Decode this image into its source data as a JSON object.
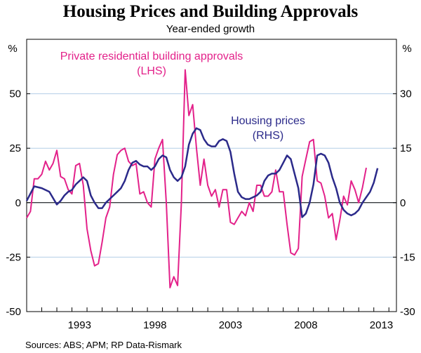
{
  "chart_data": {
    "type": "line",
    "title": "Housing Prices and Building Approvals",
    "subtitle": "Year-ended growth",
    "source": "Sources: ABS; APM; RP Data-Rismark",
    "left_axis": {
      "unit": "%",
      "ylim": [
        -50,
        75
      ],
      "ticks": [
        50,
        25,
        0,
        -25,
        -50
      ]
    },
    "right_axis": {
      "unit": "%",
      "ylim": [
        -30,
        45
      ],
      "ticks": [
        30,
        15,
        0,
        -15,
        -30
      ]
    },
    "x_axis": {
      "xlim": [
        1990.0,
        2014.5
      ],
      "ticks": [
        "1993",
        "1998",
        "2003",
        "2008",
        "2013"
      ],
      "tick_values": [
        1993,
        1998,
        2003,
        2008,
        2013
      ]
    },
    "colors": {
      "approvals": "#e3218a",
      "prices": "#2b2a8a",
      "grid": "#b3cde6"
    },
    "series": [
      {
        "name": "Private residential building approvals",
        "label_line1": "Private residential building approvals",
        "label_line2": "(LHS)",
        "axis": "left",
        "points": [
          [
            1990.0,
            -7
          ],
          [
            1990.25,
            -4
          ],
          [
            1990.5,
            11
          ],
          [
            1990.75,
            11
          ],
          [
            1991.0,
            13
          ],
          [
            1991.25,
            19
          ],
          [
            1991.5,
            15
          ],
          [
            1991.75,
            18
          ],
          [
            1992.0,
            24
          ],
          [
            1992.25,
            12
          ],
          [
            1992.5,
            11
          ],
          [
            1992.75,
            6
          ],
          [
            1993.0,
            4
          ],
          [
            1993.25,
            17
          ],
          [
            1993.5,
            18
          ],
          [
            1993.75,
            8
          ],
          [
            1994.0,
            -12
          ],
          [
            1994.25,
            -22
          ],
          [
            1994.5,
            -29
          ],
          [
            1994.75,
            -28
          ],
          [
            1995.0,
            -18
          ],
          [
            1995.25,
            -7
          ],
          [
            1995.5,
            -2
          ],
          [
            1995.75,
            13
          ],
          [
            1996.0,
            22
          ],
          [
            1996.25,
            24
          ],
          [
            1996.5,
            25
          ],
          [
            1996.75,
            19
          ],
          [
            1997.0,
            17
          ],
          [
            1997.25,
            18
          ],
          [
            1997.5,
            4
          ],
          [
            1997.75,
            5
          ],
          [
            1998.0,
            0
          ],
          [
            1998.25,
            -2
          ],
          [
            1998.5,
            20
          ],
          [
            1998.75,
            25
          ],
          [
            1999.0,
            29
          ],
          [
            1999.25,
            0
          ],
          [
            1999.5,
            -39
          ],
          [
            1999.75,
            -34
          ],
          [
            2000.0,
            -38
          ],
          [
            2000.25,
            0
          ],
          [
            2000.5,
            61
          ],
          [
            2000.75,
            40
          ],
          [
            2001.0,
            45
          ],
          [
            2001.25,
            25
          ],
          [
            2001.5,
            8
          ],
          [
            2001.75,
            20
          ],
          [
            2002.0,
            8
          ],
          [
            2002.25,
            3
          ],
          [
            2002.5,
            6
          ],
          [
            2002.75,
            -2
          ],
          [
            2003.0,
            6
          ],
          [
            2003.25,
            6
          ],
          [
            2003.5,
            -9
          ],
          [
            2003.75,
            -10
          ],
          [
            2004.0,
            -7
          ],
          [
            2004.25,
            -4
          ],
          [
            2004.5,
            -6
          ],
          [
            2004.75,
            0
          ],
          [
            2005.0,
            -4
          ],
          [
            2005.25,
            8
          ],
          [
            2005.5,
            8
          ],
          [
            2005.75,
            3
          ],
          [
            2006.0,
            3
          ],
          [
            2006.25,
            5
          ],
          [
            2006.5,
            15
          ],
          [
            2006.75,
            5
          ],
          [
            2007.0,
            5
          ],
          [
            2007.25,
            -10
          ],
          [
            2007.5,
            -23
          ],
          [
            2007.75,
            -24
          ],
          [
            2008.0,
            -21
          ],
          [
            2008.25,
            12
          ],
          [
            2008.5,
            20
          ],
          [
            2008.75,
            28
          ],
          [
            2009.0,
            29
          ],
          [
            2009.25,
            10
          ],
          [
            2009.5,
            9
          ],
          [
            2009.75,
            3
          ],
          [
            2010.0,
            -7
          ],
          [
            2010.25,
            -5
          ],
          [
            2010.5,
            -17
          ],
          [
            2010.75,
            -8
          ],
          [
            2011.0,
            3
          ],
          [
            2011.25,
            -1
          ],
          [
            2011.5,
            10
          ],
          [
            2011.75,
            6
          ],
          [
            2012.0,
            0
          ],
          [
            2012.25,
            7
          ],
          [
            2012.5,
            16
          ]
        ]
      },
      {
        "name": "Housing prices",
        "label_line1": "Housing prices",
        "label_line2": "(RHS)",
        "axis": "right",
        "points": [
          [
            1990.0,
            0.5
          ],
          [
            1990.5,
            4.5
          ],
          [
            1991.0,
            4
          ],
          [
            1991.5,
            3
          ],
          [
            1992.0,
            -0.5
          ],
          [
            1992.25,
            0.5
          ],
          [
            1992.5,
            2
          ],
          [
            1992.75,
            3
          ],
          [
            1993.0,
            3.5
          ],
          [
            1993.25,
            5
          ],
          [
            1993.5,
            6
          ],
          [
            1993.75,
            7
          ],
          [
            1994.0,
            6
          ],
          [
            1994.25,
            2
          ],
          [
            1994.5,
            0
          ],
          [
            1994.75,
            -1.5
          ],
          [
            1995.0,
            -1.5
          ],
          [
            1995.25,
            0
          ],
          [
            1995.5,
            1
          ],
          [
            1995.75,
            2
          ],
          [
            1996.0,
            3
          ],
          [
            1996.25,
            4
          ],
          [
            1996.5,
            6
          ],
          [
            1996.75,
            9
          ],
          [
            1997.0,
            11
          ],
          [
            1997.25,
            11.5
          ],
          [
            1997.5,
            10.5
          ],
          [
            1997.75,
            10
          ],
          [
            1998.0,
            10
          ],
          [
            1998.25,
            9
          ],
          [
            1998.5,
            10
          ],
          [
            1998.75,
            12
          ],
          [
            1999.0,
            13
          ],
          [
            1999.25,
            12.5
          ],
          [
            1999.5,
            9
          ],
          [
            1999.75,
            7
          ],
          [
            2000.0,
            6
          ],
          [
            2000.25,
            7
          ],
          [
            2000.5,
            10
          ],
          [
            2000.75,
            16
          ],
          [
            2001.0,
            19
          ],
          [
            2001.25,
            20.5
          ],
          [
            2001.5,
            20
          ],
          [
            2001.75,
            17.5
          ],
          [
            2002.0,
            16
          ],
          [
            2002.25,
            15.5
          ],
          [
            2002.5,
            15.5
          ],
          [
            2002.75,
            17
          ],
          [
            2003.0,
            17.5
          ],
          [
            2003.25,
            17
          ],
          [
            2003.5,
            14
          ],
          [
            2003.75,
            8
          ],
          [
            2004.0,
            3
          ],
          [
            2004.25,
            1.5
          ],
          [
            2004.5,
            1
          ],
          [
            2004.75,
            1
          ],
          [
            2005.0,
            1.5
          ],
          [
            2005.25,
            2
          ],
          [
            2005.5,
            3
          ],
          [
            2005.75,
            6
          ],
          [
            2006.0,
            7.5
          ],
          [
            2006.25,
            8
          ],
          [
            2006.5,
            8
          ],
          [
            2006.75,
            9
          ],
          [
            2007.0,
            11
          ],
          [
            2007.25,
            13
          ],
          [
            2007.5,
            12
          ],
          [
            2007.75,
            8
          ],
          [
            2008.0,
            4
          ],
          [
            2008.25,
            -4
          ],
          [
            2008.5,
            -3
          ],
          [
            2008.75,
            0
          ],
          [
            2009.0,
            5
          ],
          [
            2009.25,
            13
          ],
          [
            2009.5,
            13.5
          ],
          [
            2009.75,
            13
          ],
          [
            2010.0,
            11
          ],
          [
            2010.25,
            7
          ],
          [
            2010.5,
            4
          ],
          [
            2010.75,
            0
          ],
          [
            2011.0,
            -2
          ],
          [
            2011.25,
            -3
          ],
          [
            2011.5,
            -3.5
          ],
          [
            2011.75,
            -3
          ],
          [
            2012.0,
            -2
          ],
          [
            2012.25,
            0
          ],
          [
            2012.5,
            1.5
          ],
          [
            2012.75,
            3
          ],
          [
            2013.0,
            5.5
          ],
          [
            2013.25,
            9.5
          ]
        ]
      }
    ]
  }
}
